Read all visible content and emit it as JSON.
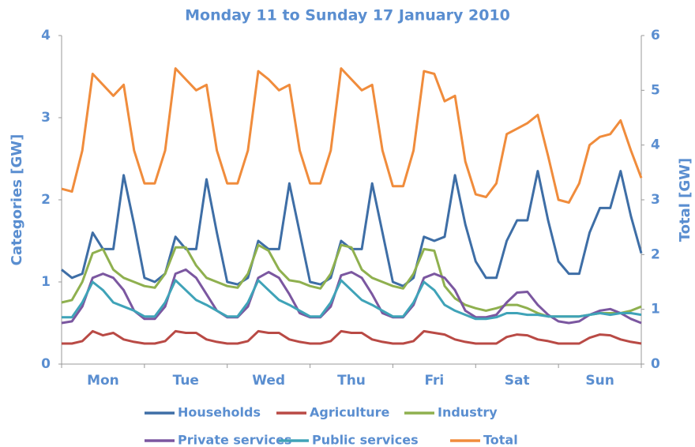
{
  "chart_data": {
    "type": "line",
    "title": "Monday 11 to Sunday 17 January 2010",
    "ylabel": "Categories [GW]",
    "y2label": "Total [GW]",
    "categories": [
      null,
      null,
      null,
      null,
      "Mon",
      null,
      null,
      null,
      null,
      null,
      null,
      null,
      "Tue",
      null,
      null,
      null,
      null,
      null,
      null,
      null,
      "Wed",
      null,
      null,
      null,
      null,
      null,
      null,
      null,
      "Thu",
      null,
      null,
      null,
      null,
      null,
      null,
      null,
      "Fri",
      null,
      null,
      null,
      null,
      null,
      null,
      null,
      "Sat",
      null,
      null,
      null,
      null,
      null,
      null,
      null,
      "Sun",
      null,
      null,
      null,
      null
    ],
    "ylim": [
      0,
      4
    ],
    "yticks": [
      0,
      1,
      2,
      3,
      4
    ],
    "y2lim": [
      0,
      6
    ],
    "y2ticks": [
      0,
      1,
      2,
      3,
      4,
      5,
      6
    ],
    "grid": false,
    "legend": "bottom",
    "series": [
      {
        "name": "Households",
        "color": "#3e6ea6",
        "values": [
          1.15,
          1.05,
          1.1,
          1.6,
          1.4,
          1.4,
          2.3,
          1.7,
          1.05,
          1.0,
          1.1,
          1.55,
          1.4,
          1.4,
          2.25,
          1.6,
          1.0,
          0.97,
          1.05,
          1.5,
          1.4,
          1.4,
          2.2,
          1.6,
          1.0,
          0.97,
          1.05,
          1.5,
          1.4,
          1.4,
          2.2,
          1.6,
          1.0,
          0.95,
          1.05,
          1.55,
          1.5,
          1.55,
          2.3,
          1.7,
          1.25,
          1.05,
          1.05,
          1.5,
          1.75,
          1.75,
          2.35,
          1.75,
          1.25,
          1.1,
          1.1,
          1.6,
          1.9,
          1.9,
          2.35,
          1.8,
          1.35
        ]
      },
      {
        "name": "Agriculture",
        "color": "#b94a45",
        "values": [
          0.25,
          0.25,
          0.28,
          0.4,
          0.35,
          0.38,
          0.3,
          0.27,
          0.25,
          0.25,
          0.28,
          0.4,
          0.38,
          0.38,
          0.3,
          0.27,
          0.25,
          0.25,
          0.28,
          0.4,
          0.38,
          0.38,
          0.3,
          0.27,
          0.25,
          0.25,
          0.28,
          0.4,
          0.38,
          0.38,
          0.3,
          0.27,
          0.25,
          0.25,
          0.28,
          0.4,
          0.38,
          0.36,
          0.3,
          0.27,
          0.25,
          0.25,
          0.25,
          0.33,
          0.36,
          0.35,
          0.3,
          0.28,
          0.25,
          0.25,
          0.25,
          0.32,
          0.36,
          0.35,
          0.3,
          0.27,
          0.25
        ]
      },
      {
        "name": "Industry",
        "color": "#8fb04f",
        "values": [
          0.75,
          0.78,
          1.0,
          1.35,
          1.4,
          1.15,
          1.05,
          1.0,
          0.95,
          0.93,
          1.1,
          1.42,
          1.42,
          1.2,
          1.05,
          1.0,
          0.95,
          0.93,
          1.1,
          1.45,
          1.38,
          1.15,
          1.02,
          1.0,
          0.95,
          0.92,
          1.1,
          1.45,
          1.42,
          1.15,
          1.05,
          1.0,
          0.95,
          0.92,
          1.1,
          1.4,
          1.38,
          0.95,
          0.8,
          0.72,
          0.68,
          0.65,
          0.68,
          0.72,
          0.72,
          0.68,
          0.62,
          0.58,
          0.58,
          0.58,
          0.58,
          0.6,
          0.62,
          0.62,
          0.62,
          0.65,
          0.7
        ]
      },
      {
        "name": "Private services",
        "color": "#7b57a0",
        "values": [
          0.5,
          0.52,
          0.7,
          1.05,
          1.1,
          1.05,
          0.9,
          0.65,
          0.55,
          0.55,
          0.7,
          1.1,
          1.15,
          1.05,
          0.85,
          0.65,
          0.57,
          0.57,
          0.7,
          1.05,
          1.12,
          1.05,
          0.85,
          0.62,
          0.57,
          0.57,
          0.7,
          1.08,
          1.12,
          1.05,
          0.85,
          0.62,
          0.57,
          0.57,
          0.72,
          1.05,
          1.1,
          1.05,
          0.9,
          0.65,
          0.57,
          0.57,
          0.6,
          0.75,
          0.87,
          0.88,
          0.72,
          0.6,
          0.52,
          0.5,
          0.52,
          0.6,
          0.65,
          0.67,
          0.62,
          0.55,
          0.5
        ]
      },
      {
        "name": "Public services",
        "color": "#3fa3b8",
        "values": [
          0.57,
          0.57,
          0.75,
          1.0,
          0.9,
          0.75,
          0.7,
          0.65,
          0.58,
          0.58,
          0.75,
          1.02,
          0.9,
          0.78,
          0.72,
          0.65,
          0.58,
          0.58,
          0.75,
          1.02,
          0.9,
          0.78,
          0.72,
          0.65,
          0.58,
          0.58,
          0.75,
          1.02,
          0.9,
          0.78,
          0.72,
          0.65,
          0.58,
          0.58,
          0.75,
          1.0,
          0.9,
          0.72,
          0.65,
          0.6,
          0.55,
          0.55,
          0.57,
          0.62,
          0.62,
          0.6,
          0.6,
          0.58,
          0.58,
          0.58,
          0.58,
          0.6,
          0.62,
          0.6,
          0.62,
          0.62,
          0.6
        ]
      },
      {
        "name": "Total",
        "color": "#f08c3c",
        "axis": "y2",
        "values": [
          3.2,
          3.15,
          3.9,
          5.3,
          5.1,
          4.9,
          5.1,
          3.9,
          3.3,
          3.3,
          3.9,
          5.4,
          5.2,
          5.0,
          5.1,
          3.9,
          3.3,
          3.3,
          3.9,
          5.35,
          5.2,
          5.0,
          5.1,
          3.9,
          3.3,
          3.3,
          3.9,
          5.4,
          5.2,
          5.0,
          5.1,
          3.9,
          3.25,
          3.25,
          3.9,
          5.35,
          5.3,
          4.8,
          4.9,
          3.7,
          3.1,
          3.05,
          3.3,
          4.2,
          4.3,
          4.4,
          4.55,
          3.8,
          3.0,
          2.95,
          3.3,
          4.0,
          4.15,
          4.2,
          4.45,
          3.9,
          3.4
        ]
      }
    ]
  }
}
